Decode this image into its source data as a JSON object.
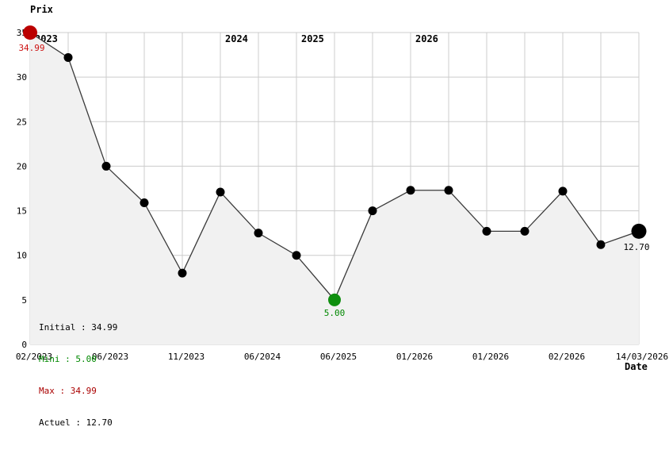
{
  "chart_data": {
    "type": "line",
    "ylabel": "Prix",
    "xlabel": "Date",
    "ylim": [
      0,
      35
    ],
    "y_ticks": [
      0,
      5,
      10,
      15,
      20,
      25,
      30,
      35
    ],
    "grid": true,
    "x_tick_labels": [
      "02/2023",
      "06/2023",
      "11/2023",
      "06/2024",
      "06/2025",
      "01/2026",
      "01/2026",
      "02/2026",
      "14/03/2026"
    ],
    "x_tick_point_indices": [
      0,
      2,
      4,
      6,
      8,
      10,
      12,
      14,
      16
    ],
    "values": [
      34.99,
      32.2,
      20.0,
      15.9,
      8.0,
      17.1,
      12.5,
      10.0,
      5.0,
      15.0,
      17.3,
      17.3,
      12.7,
      12.7,
      17.2,
      11.2,
      12.7
    ],
    "year_labels": [
      {
        "text": "2023",
        "point_index": 0
      },
      {
        "text": "2024",
        "point_index": 5
      },
      {
        "text": "2025",
        "point_index": 7
      },
      {
        "text": "2026",
        "point_index": 10
      }
    ],
    "markers": {
      "start": {
        "index": 0,
        "label": "34.99",
        "dot_color": "#bb0000",
        "label_color": "#cc1111",
        "radius": 9
      },
      "min": {
        "index": 8,
        "label": "5.00",
        "dot_color": "#0f8f0f",
        "label_color": "#008800",
        "radius": 8
      },
      "end": {
        "index": 16,
        "label": "12.70",
        "dot_color": "#000000",
        "label_color": "#000000",
        "radius": 9.5
      }
    },
    "colors": {
      "line": "#3a3a3a",
      "point": "#000000",
      "fill": "#f1f1f1",
      "grid": "#cccccc",
      "tick_text": "#000000"
    },
    "point_radius": 5.5
  },
  "legend": {
    "initial": "Initial : 34.99",
    "mini": "Mini : 5.00",
    "max": "Max : 34.99",
    "actuel": "Actuel : 12.70",
    "initial_color": "#000000",
    "mini_color": "#008800",
    "max_color": "#aa0000",
    "actuel_color": "#000000"
  }
}
